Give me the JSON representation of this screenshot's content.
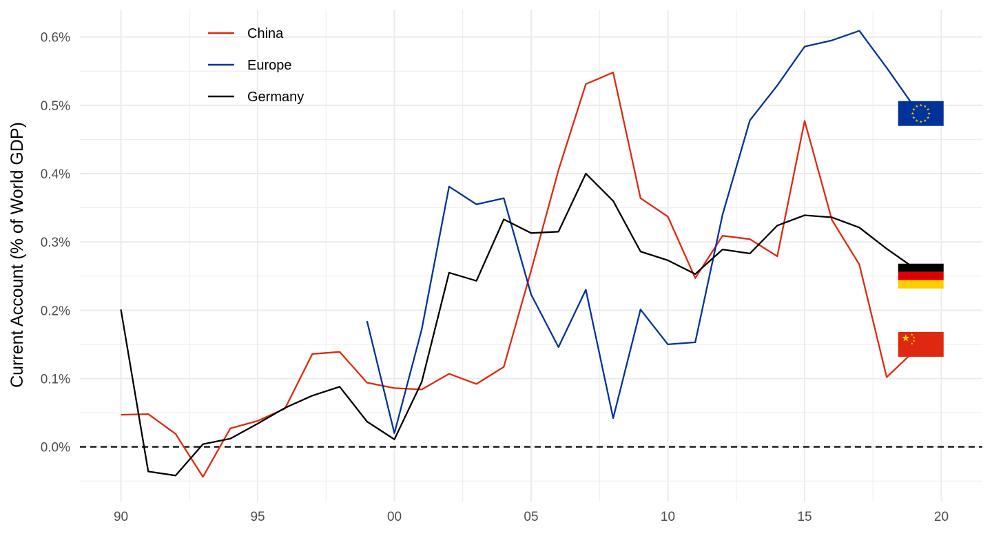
{
  "chart_data": {
    "type": "line",
    "title": "",
    "xlabel": "",
    "ylabel": "Current Account (% of World GDP)",
    "xlim": [
      1988.5,
      2021.5
    ],
    "ylim": [
      -0.0008,
      0.0064
    ],
    "x_ticks": [
      {
        "value": 1990,
        "label": "90"
      },
      {
        "value": 1995,
        "label": "95"
      },
      {
        "value": 2000,
        "label": "00"
      },
      {
        "value": 2005,
        "label": "05"
      },
      {
        "value": 2010,
        "label": "10"
      },
      {
        "value": 2015,
        "label": "15"
      },
      {
        "value": 2020,
        "label": "20"
      }
    ],
    "y_ticks": [
      {
        "value": 0.0,
        "label": "0.0%"
      },
      {
        "value": 0.001,
        "label": "0.1%"
      },
      {
        "value": 0.002,
        "label": "0.2%"
      },
      {
        "value": 0.003,
        "label": "0.3%"
      },
      {
        "value": 0.004,
        "label": "0.4%"
      },
      {
        "value": 0.005,
        "label": "0.5%"
      },
      {
        "value": 0.006,
        "label": "0.6%"
      }
    ],
    "reference_line": {
      "value": 0.0,
      "style": "dashed"
    },
    "grid": true,
    "legend": "top-left",
    "series": [
      {
        "name": "China",
        "color": "#de2910",
        "x": [
          1990,
          1991,
          1992,
          1993,
          1994,
          1995,
          1996,
          1997,
          1998,
          1999,
          2000,
          2001,
          2002,
          2003,
          2004,
          2005,
          2006,
          2007,
          2008,
          2009,
          2010,
          2011,
          2012,
          2013,
          2014,
          2015,
          2016,
          2017,
          2018,
          2019
        ],
        "values": [
          0.00047,
          0.00048,
          0.00019,
          -0.00044,
          0.00027,
          0.00038,
          0.00056,
          0.00136,
          0.00139,
          0.00094,
          0.00086,
          0.00084,
          0.00107,
          0.00092,
          0.00117,
          0.00258,
          0.00405,
          0.00531,
          0.00548,
          0.00364,
          0.00337,
          0.00247,
          0.00309,
          0.00304,
          0.00279,
          0.00477,
          0.00332,
          0.00267,
          0.00102,
          0.0014
        ]
      },
      {
        "name": "Europe",
        "color": "#003399",
        "x": [
          1999,
          2000,
          2001,
          2002,
          2003,
          2004,
          2005,
          2006,
          2007,
          2008,
          2009,
          2010,
          2011,
          2012,
          2013,
          2014,
          2015,
          2016,
          2017,
          2018,
          2019
        ],
        "values": [
          0.00184,
          0.0002,
          0.00172,
          0.00381,
          0.00355,
          0.00364,
          0.00223,
          0.00146,
          0.0023,
          0.00042,
          0.00201,
          0.0015,
          0.00153,
          0.0034,
          0.00478,
          0.00529,
          0.00586,
          0.00595,
          0.00609,
          0.00555,
          0.00498
        ]
      },
      {
        "name": "Germany",
        "color": "#000000",
        "x": [
          1990,
          1991,
          1992,
          1993,
          1994,
          1995,
          1996,
          1997,
          1998,
          1999,
          2000,
          2001,
          2002,
          2003,
          2004,
          2005,
          2006,
          2007,
          2008,
          2009,
          2010,
          2011,
          2012,
          2013,
          2014,
          2015,
          2016,
          2017,
          2018,
          2019
        ],
        "values": [
          0.00201,
          -0.00036,
          -0.00042,
          4e-05,
          0.00012,
          0.00034,
          0.00057,
          0.00075,
          0.00088,
          0.00037,
          0.00011,
          0.00095,
          0.00255,
          0.00243,
          0.00333,
          0.00313,
          0.00315,
          0.004,
          0.0036,
          0.00286,
          0.00273,
          0.00253,
          0.00289,
          0.00283,
          0.00324,
          0.00339,
          0.00336,
          0.00321,
          0.0029,
          0.00262
        ]
      }
    ],
    "flags": [
      {
        "series": "Europe",
        "icon": "eu-flag-icon",
        "x": 2019,
        "y": 0.00488
      },
      {
        "series": "Germany",
        "icon": "germany-flag-icon",
        "x": 2019,
        "y": 0.0025
      },
      {
        "series": "China",
        "icon": "china-flag-icon",
        "x": 2019,
        "y": 0.0015
      }
    ],
    "colors": {
      "grid": "#ebebeb",
      "tick_text": "#4d4d4d",
      "eu_blue": "#003399",
      "eu_star": "#ffcc00",
      "de_black": "#000000",
      "de_red": "#dd0000",
      "de_gold": "#ffce00",
      "cn_red": "#de2910",
      "cn_star": "#ffde00"
    }
  }
}
